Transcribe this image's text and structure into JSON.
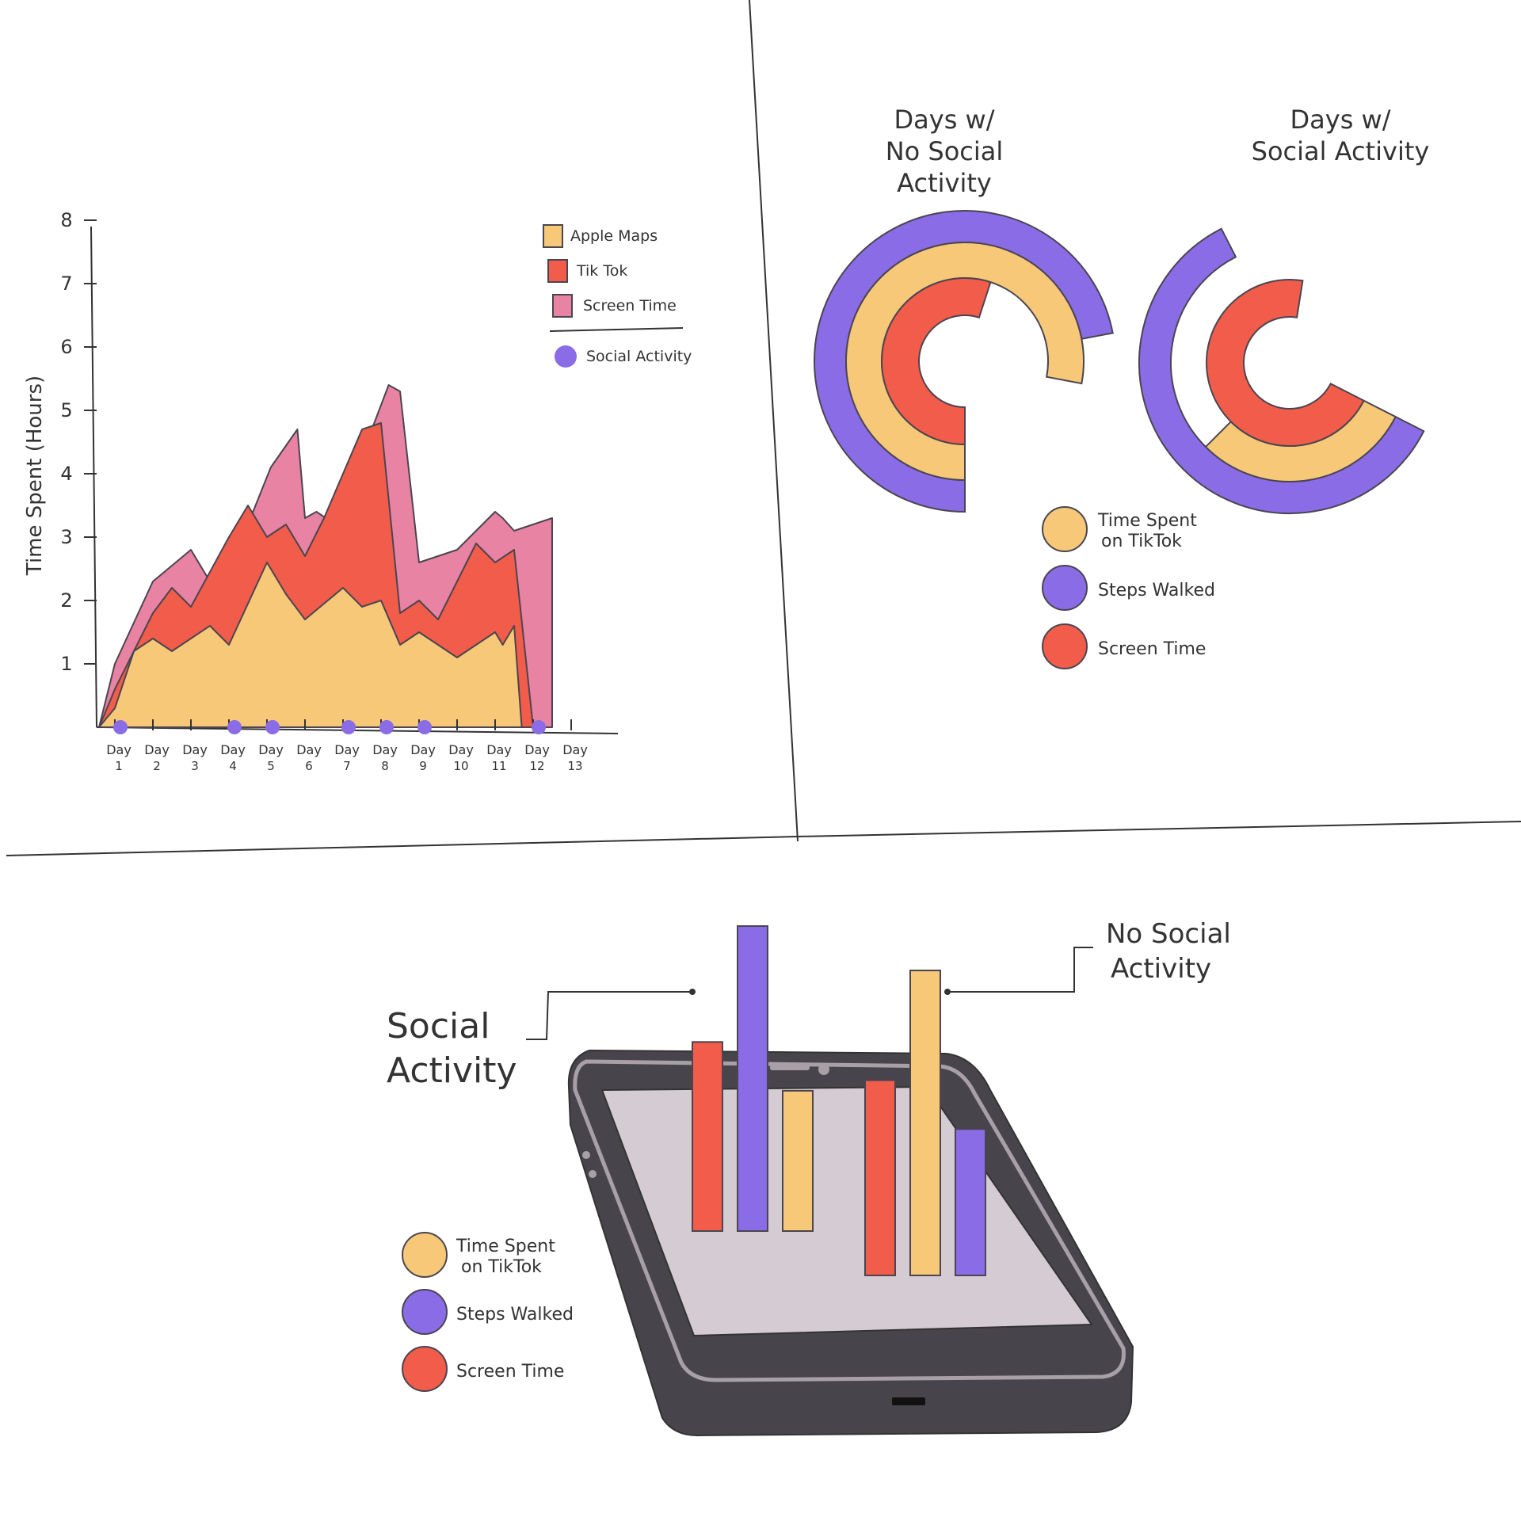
{
  "colors": {
    "apple_maps": "#F6C878",
    "tiktok": "#F25C4A",
    "screen_time_pink": "#E983A3",
    "social_dot": "#8A6CE6",
    "steps": "#8A6CE6",
    "time_tiktok": "#F6C878",
    "screen_time": "#F25C4A",
    "outline": "#4A4550",
    "phone_body": "#47454B",
    "phone_screen": "#D5CBD3",
    "phone_rim": "#A8A0A6"
  },
  "chart_data": [
    {
      "type": "area",
      "title": "",
      "ylabel": "Time Spent (Hours)",
      "xlabel": "",
      "ylim": [
        0,
        8
      ],
      "yticks": [
        "1",
        "2",
        "3",
        "4",
        "5",
        "6",
        "7",
        "8"
      ],
      "categories": [
        [
          "Day",
          "1"
        ],
        [
          "Day",
          "2"
        ],
        [
          "Day",
          "3"
        ],
        [
          "Day",
          "4"
        ],
        [
          "Day",
          "5"
        ],
        [
          "Day",
          "6"
        ],
        [
          "Day",
          "7"
        ],
        [
          "Day",
          "8"
        ],
        [
          "Day",
          "9"
        ],
        [
          "Day",
          "10"
        ],
        [
          "Day",
          "11"
        ],
        [
          "Day",
          "12"
        ],
        [
          "Day",
          "13"
        ]
      ],
      "series": [
        {
          "name": "Screen Time",
          "points": [
            [
              0.5,
              1.0
            ],
            [
              1.5,
              2.3
            ],
            [
              2.5,
              2.8
            ],
            [
              3.0,
              2.3
            ],
            [
              3.5,
              3.0
            ],
            [
              3.8,
              2.9
            ],
            [
              4.6,
              4.1
            ],
            [
              5.3,
              4.7
            ],
            [
              5.5,
              3.3
            ],
            [
              5.8,
              3.4
            ],
            [
              6.3,
              3.2
            ],
            [
              6.5,
              3.5
            ],
            [
              7.7,
              5.4
            ],
            [
              8.0,
              5.3
            ],
            [
              8.5,
              2.6
            ],
            [
              9.0,
              2.7
            ],
            [
              9.5,
              2.8
            ],
            [
              10.5,
              3.4
            ],
            [
              10.7,
              3.3
            ],
            [
              11.0,
              3.1
            ],
            [
              12.0,
              3.3
            ]
          ]
        },
        {
          "name": "Tik Tok",
          "points": [
            [
              0.5,
              0.6
            ],
            [
              1.5,
              1.8
            ],
            [
              2.0,
              2.2
            ],
            [
              2.5,
              1.9
            ],
            [
              3.5,
              3.0
            ],
            [
              4.0,
              3.5
            ],
            [
              4.5,
              3.0
            ],
            [
              5.0,
              3.2
            ],
            [
              5.5,
              2.7
            ],
            [
              6.0,
              3.3
            ],
            [
              7.0,
              4.7
            ],
            [
              7.5,
              4.8
            ],
            [
              8.0,
              1.8
            ],
            [
              8.5,
              2.0
            ],
            [
              9.0,
              1.7
            ],
            [
              10.0,
              2.9
            ],
            [
              10.5,
              2.6
            ],
            [
              11.0,
              2.8
            ],
            [
              11.5,
              0.0
            ]
          ]
        },
        {
          "name": "Apple Maps",
          "points": [
            [
              0.5,
              0.3
            ],
            [
              1.0,
              1.2
            ],
            [
              1.5,
              1.4
            ],
            [
              2.0,
              1.2
            ],
            [
              3.0,
              1.6
            ],
            [
              3.5,
              1.3
            ],
            [
              4.5,
              2.6
            ],
            [
              5.0,
              2.1
            ],
            [
              5.5,
              1.7
            ],
            [
              6.5,
              2.2
            ],
            [
              7.0,
              1.9
            ],
            [
              7.5,
              2.0
            ],
            [
              8.0,
              1.3
            ],
            [
              8.5,
              1.5
            ],
            [
              9.5,
              1.1
            ],
            [
              10.5,
              1.5
            ],
            [
              10.7,
              1.3
            ],
            [
              11.0,
              1.6
            ],
            [
              11.2,
              0.0
            ]
          ]
        }
      ],
      "social_activity_days": [
        1,
        4,
        5,
        7,
        8,
        9,
        12
      ],
      "legend": {
        "placement": "top-right",
        "items": [
          "Apple Maps",
          "Tik Tok",
          "Screen Time"
        ],
        "marker_item": "Social Activity"
      }
    },
    {
      "type": "radial-bar",
      "groups": [
        {
          "title_lines": [
            "Days w/",
            "No Social",
            "Activity"
          ],
          "rings": [
            {
              "name": "Steps Walked",
              "value": 0.72
            },
            {
              "name": "Time Spent on TikTok",
              "value": 0.78
            },
            {
              "name": "Screen Time",
              "value": 0.55
            }
          ]
        },
        {
          "title_lines": [
            "Days w/",
            "Social Activity"
          ],
          "rings": [
            {
              "name": "Steps Walked",
              "value": 0.6
            },
            {
              "name": "Time Spent on TikTok",
              "value": 0.3
            },
            {
              "name": "Screen Time",
              "value": 0.7
            }
          ]
        }
      ],
      "legend": [
        {
          "lines": [
            "Time Spent",
            "on TikTok"
          ],
          "key": "time_tiktok"
        },
        {
          "lines": [
            "Steps Walked"
          ],
          "key": "steps"
        },
        {
          "lines": [
            "Screen Time"
          ],
          "key": "screen_time"
        }
      ]
    },
    {
      "type": "bar",
      "ylim": [
        0,
        100
      ],
      "groups": [
        {
          "label_lines": [
            "Social",
            "Activity"
          ],
          "bars": [
            {
              "name": "Screen Time",
              "value": 62
            },
            {
              "name": "Steps Walked",
              "value": 100
            },
            {
              "name": "Time Spent on TikTok",
              "value": 46
            }
          ]
        },
        {
          "label_lines": [
            "No Social",
            "Activity"
          ],
          "bars": [
            {
              "name": "Screen Time",
              "value": 64
            },
            {
              "name": "Time Spent on TikTok",
              "value": 100
            },
            {
              "name": "Steps Walked",
              "value": 48
            }
          ]
        }
      ],
      "legend": [
        {
          "lines": [
            "Time Spent",
            "on TikTok"
          ],
          "key": "time_tiktok"
        },
        {
          "lines": [
            "Steps Walked"
          ],
          "key": "steps"
        },
        {
          "lines": [
            "Screen Time"
          ],
          "key": "screen_time"
        }
      ]
    }
  ]
}
